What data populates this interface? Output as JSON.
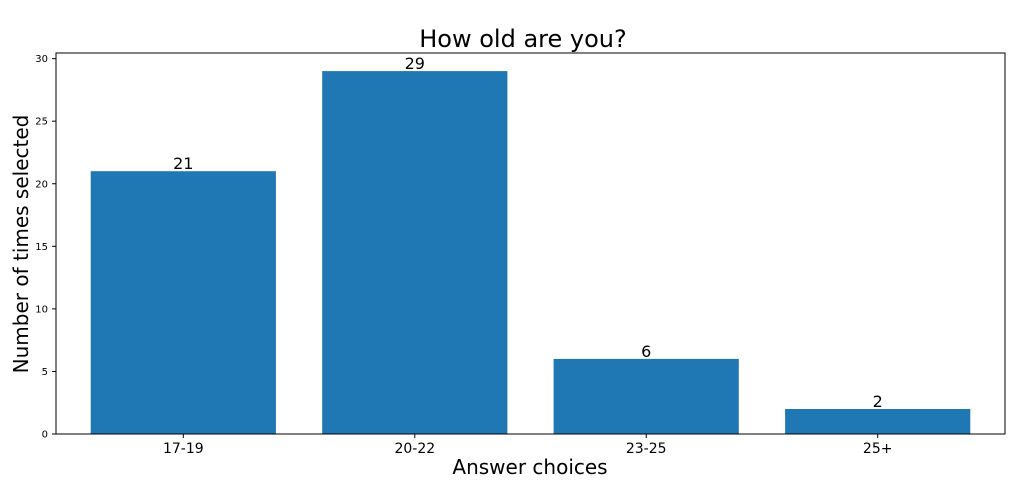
{
  "chart_data": {
    "type": "bar",
    "title": "How old are you?",
    "xlabel": "Answer choices",
    "ylabel": "Number of times selected",
    "categories": [
      "17-19",
      "20-22",
      "23-25",
      "25+"
    ],
    "values": [
      21,
      29,
      6,
      2
    ],
    "ylim": [
      0,
      30.45
    ],
    "yticks": [
      0,
      5,
      10,
      15,
      20,
      25,
      30
    ],
    "grid": false,
    "legend": "none",
    "bar_color": "#1f77b4"
  }
}
